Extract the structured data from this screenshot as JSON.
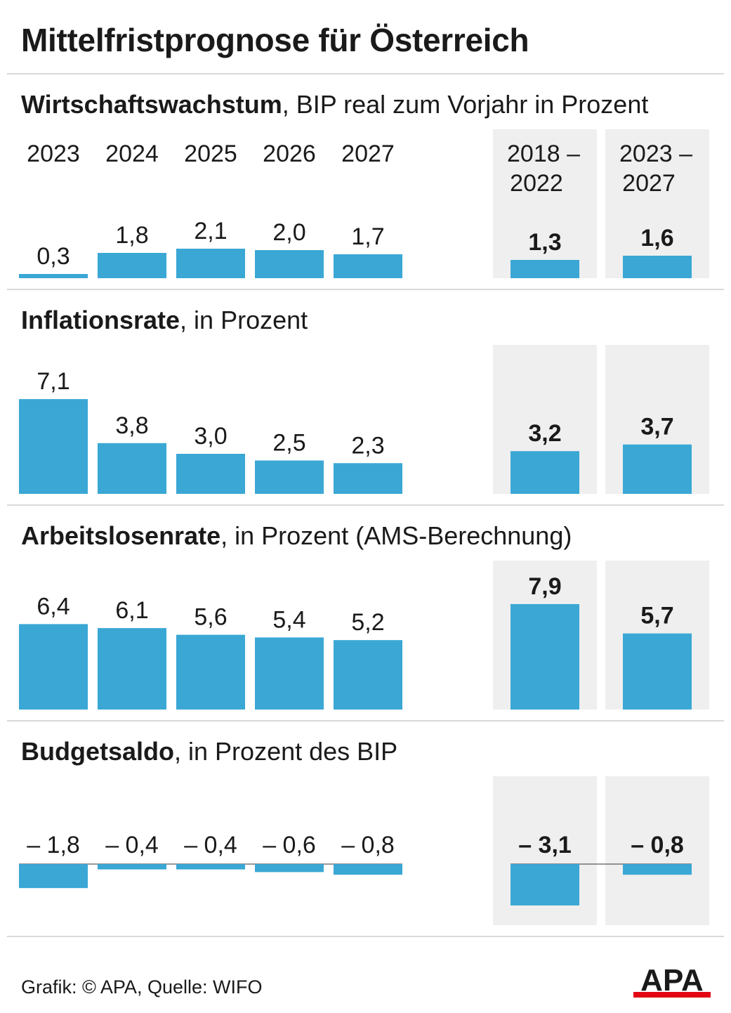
{
  "title": "Mittelfristprognose für Österreich",
  "colors": {
    "bar": "#3aa7d5",
    "box": "#efefef",
    "text": "#1a1a1a",
    "logo_red": "#e30613"
  },
  "years": [
    "2023",
    "2024",
    "2025",
    "2026",
    "2027"
  ],
  "averages": [
    {
      "from": "2018 –",
      "to": "2022"
    },
    {
      "from": "2023 –",
      "to": "2027"
    }
  ],
  "chart_data": [
    {
      "type": "bar",
      "title_bold": "Wirtschaftswachstum",
      "title_rest": ", BIP real zum Vorjahr in Prozent",
      "categories": [
        "2023",
        "2024",
        "2025",
        "2026",
        "2027"
      ],
      "values": [
        0.3,
        1.8,
        2.1,
        2.0,
        1.7
      ],
      "labels": [
        "0,3",
        "1,8",
        "2,1",
        "2,0",
        "1,7"
      ],
      "avg_categories": [
        "2018 – 2022",
        "2023 – 2027"
      ],
      "avg_values": [
        1.3,
        1.6
      ],
      "avg_labels": [
        "1,3",
        "1,6"
      ]
    },
    {
      "type": "bar",
      "title_bold": "Inflationsrate",
      "title_rest": ", in Prozent",
      "categories": [
        "2023",
        "2024",
        "2025",
        "2026",
        "2027"
      ],
      "values": [
        7.1,
        3.8,
        3.0,
        2.5,
        2.3
      ],
      "labels": [
        "7,1",
        "3,8",
        "3,0",
        "2,5",
        "2,3"
      ],
      "avg_categories": [
        "2018 – 2022",
        "2023 – 2027"
      ],
      "avg_values": [
        3.2,
        3.7
      ],
      "avg_labels": [
        "3,2",
        "3,7"
      ]
    },
    {
      "type": "bar",
      "title_bold": "Arbeitslosenrate",
      "title_rest": ", in Prozent (AMS-Berechnung)",
      "categories": [
        "2023",
        "2024",
        "2025",
        "2026",
        "2027"
      ],
      "values": [
        6.4,
        6.1,
        5.6,
        5.4,
        5.2
      ],
      "labels": [
        "6,4",
        "6,1",
        "5,6",
        "5,4",
        "5,2"
      ],
      "avg_categories": [
        "2018 – 2022",
        "2023 – 2027"
      ],
      "avg_values": [
        7.9,
        5.7
      ],
      "avg_labels": [
        "7,9",
        "5,7"
      ]
    },
    {
      "type": "bar",
      "title_bold": "Budgetsaldo",
      "title_rest": ", in Prozent des BIP",
      "categories": [
        "2023",
        "2024",
        "2025",
        "2026",
        "2027"
      ],
      "values": [
        -1.8,
        -0.4,
        -0.4,
        -0.6,
        -0.8
      ],
      "labels": [
        "– 1,8",
        "– 0,4",
        "– 0,4",
        "– 0,6",
        "– 0,8"
      ],
      "avg_categories": [
        "2018 – 2022",
        "2023 – 2027"
      ],
      "avg_values": [
        -3.1,
        -0.8
      ],
      "avg_labels": [
        "– 3,1",
        "– 0,8"
      ]
    }
  ],
  "footer": "Grafik: © APA, Quelle: WIFO",
  "logo": "APA"
}
